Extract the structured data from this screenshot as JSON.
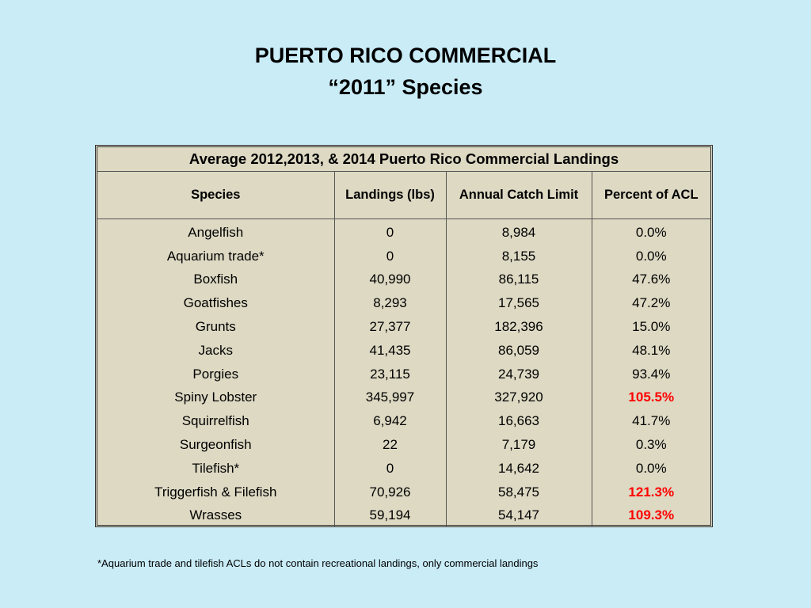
{
  "title": {
    "line1": "PUERTO RICO COMMERCIAL",
    "line2": "“2011” Species"
  },
  "table": {
    "caption": "Average 2012,2013, & 2014 Puerto Rico Commercial Landings",
    "headers": [
      "Species",
      "Landings (lbs)",
      "Annual Catch Limit",
      "Percent of ACL"
    ],
    "highlight_color": "#ff0000",
    "rows": [
      [
        "Angelfish",
        "0",
        "8,984",
        "0.0%",
        false
      ],
      [
        "Aquarium trade*",
        "0",
        "8,155",
        "0.0%",
        false
      ],
      [
        "Boxfish",
        "40,990",
        "86,115",
        "47.6%",
        false
      ],
      [
        "Goatfishes",
        "8,293",
        "17,565",
        "47.2%",
        false
      ],
      [
        "Grunts",
        "27,377",
        "182,396",
        "15.0%",
        false
      ],
      [
        "Jacks",
        "41,435",
        "86,059",
        "48.1%",
        false
      ],
      [
        "Porgies",
        "23,115",
        "24,739",
        "93.4%",
        false
      ],
      [
        "Spiny Lobster",
        "345,997",
        "327,920",
        "105.5%",
        true
      ],
      [
        "Squirrelfish",
        "6,942",
        "16,663",
        "41.7%",
        false
      ],
      [
        "Surgeonfish",
        "22",
        "7,179",
        "0.3%",
        false
      ],
      [
        "Tilefish*",
        "0",
        "14,642",
        "0.0%",
        false
      ],
      [
        "Triggerfish & Filefish",
        "70,926",
        "58,475",
        "121.3%",
        true
      ],
      [
        "Wrasses",
        "59,194",
        "54,147",
        "109.3%",
        true
      ]
    ]
  },
  "footnote": "*Aquarium trade and tilefish ACLs do not contain recreational landings, only commercial landings"
}
